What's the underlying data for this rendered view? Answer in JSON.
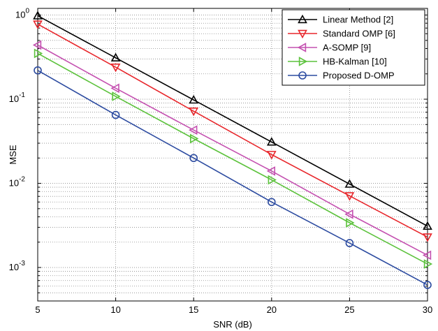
{
  "chart_data": {
    "type": "line",
    "title": "",
    "xlabel": "SNR (dB)",
    "ylabel": "MSE",
    "x": [
      5,
      10,
      15,
      20,
      25,
      30
    ],
    "xlim": [
      5,
      30
    ],
    "ylim": [
      0.0004,
      1.2
    ],
    "yscale": "log",
    "grid": true,
    "legend_position": "top-right",
    "x_ticks": [
      "5",
      "10",
      "15",
      "20",
      "25",
      "30"
    ],
    "y_ticks": [
      {
        "value": 1,
        "base": "10",
        "exp": "0"
      },
      {
        "value": 0.1,
        "base": "10",
        "exp": "-1"
      },
      {
        "value": 0.01,
        "base": "10",
        "exp": "-2"
      },
      {
        "value": 0.001,
        "base": "10",
        "exp": "-3"
      }
    ],
    "series": [
      {
        "name": "Linear Method [2]",
        "color": "#000000",
        "marker": "triangle-up",
        "values": [
          0.98,
          0.31,
          0.098,
          0.031,
          0.0098,
          0.0031
        ]
      },
      {
        "name": "Standard OMP [6]",
        "color": "#e8262b",
        "marker": "triangle-down",
        "values": [
          0.78,
          0.24,
          0.072,
          0.022,
          0.0071,
          0.0023
        ]
      },
      {
        "name": "A-SOMP [9]",
        "color": "#c450b0",
        "marker": "triangle-left",
        "values": [
          0.44,
          0.135,
          0.043,
          0.014,
          0.0043,
          0.0014
        ]
      },
      {
        "name": "HB-Kalman [10]",
        "color": "#5cc23c",
        "marker": "triangle-right",
        "values": [
          0.35,
          0.108,
          0.034,
          0.011,
          0.0034,
          0.0011
        ]
      },
      {
        "name": "Proposed D-OMP",
        "color": "#2c4ba0",
        "marker": "circle",
        "values": [
          0.22,
          0.065,
          0.02,
          0.006,
          0.00195,
          0.00062
        ]
      }
    ]
  }
}
